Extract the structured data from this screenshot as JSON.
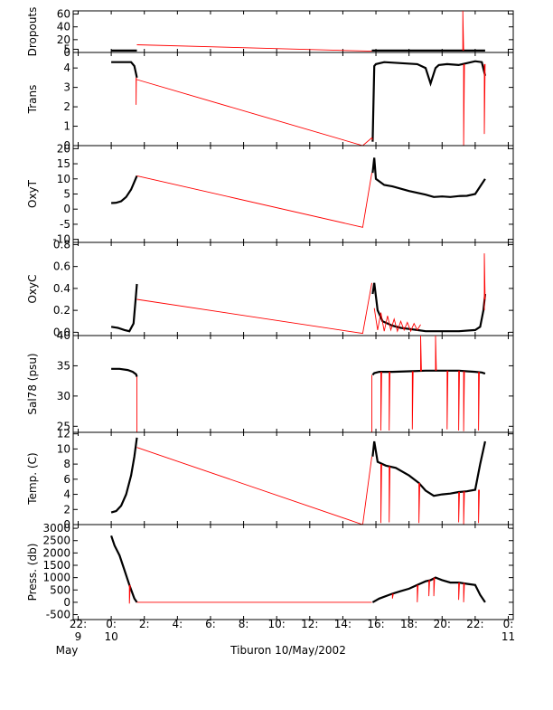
{
  "title": "Tiburon 10/May/2002",
  "colors": {
    "data": "#000000",
    "trace": "#ff0000",
    "axis": "#000000"
  },
  "x_axis": {
    "ticks": [
      {
        "hour": -2,
        "top": "22:",
        "bottom": "9"
      },
      {
        "hour": 0,
        "top": "0:",
        "bottom": "10"
      },
      {
        "hour": 2,
        "top": "2:",
        "bottom": ""
      },
      {
        "hour": 4,
        "top": "4:",
        "bottom": ""
      },
      {
        "hour": 6,
        "top": "6:",
        "bottom": ""
      },
      {
        "hour": 8,
        "top": "8:",
        "bottom": ""
      },
      {
        "hour": 10,
        "top": "10:",
        "bottom": ""
      },
      {
        "hour": 12,
        "top": "12:",
        "bottom": ""
      },
      {
        "hour": 14,
        "top": "14:",
        "bottom": ""
      },
      {
        "hour": 16,
        "top": "16:",
        "bottom": ""
      },
      {
        "hour": 18,
        "top": "18:",
        "bottom": ""
      },
      {
        "hour": 20,
        "top": "20:",
        "bottom": ""
      },
      {
        "hour": 22,
        "top": "22:",
        "bottom": ""
      },
      {
        "hour": 24,
        "top": "0:",
        "bottom": "11"
      }
    ],
    "month_label": "May",
    "range_hours": [
      -2.3,
      24.3
    ]
  },
  "chart_data": [
    {
      "type": "line",
      "ylabel": "Dropouts",
      "ylim": [
        0,
        65
      ],
      "yticks": [
        {
          "v": 0,
          "l": "0"
        },
        {
          "v": 5,
          "l": "5"
        },
        {
          "v": 20,
          "l": "20"
        },
        {
          "v": 40,
          "l": "40"
        },
        {
          "v": 60,
          "l": "60"
        }
      ],
      "series": [
        {
          "color": "black",
          "x": [
            0,
            0.5,
            1.0,
            1.5,
            1.55
          ],
          "y": [
            3,
            3,
            3,
            3,
            3
          ]
        },
        {
          "color": "black",
          "x": [
            15.75,
            17,
            18,
            19,
            20,
            21,
            22,
            22.6
          ],
          "y": [
            3,
            3,
            3,
            3,
            3,
            3,
            3,
            3
          ]
        },
        {
          "color": "red",
          "x": [
            1.55,
            15.75
          ],
          "y": [
            12,
            2
          ]
        },
        {
          "color": "red",
          "x": [
            21.25,
            21.25,
            21.3
          ],
          "y": [
            3,
            65,
            3
          ]
        }
      ]
    },
    {
      "type": "line",
      "ylabel": "Trans",
      "ylim": [
        0,
        4.8
      ],
      "yticks": [
        {
          "v": 0,
          "l": "0"
        },
        {
          "v": 1,
          "l": "1"
        },
        {
          "v": 2,
          "l": "2"
        },
        {
          "v": 3,
          "l": "3"
        },
        {
          "v": 4,
          "l": "4"
        }
      ],
      "series": [
        {
          "color": "black",
          "x": [
            0,
            0.6,
            1.2,
            1.4,
            1.5,
            1.55
          ],
          "y": [
            4.3,
            4.3,
            4.3,
            4.1,
            3.7,
            3.5
          ]
        },
        {
          "color": "black",
          "x": [
            15.8,
            15.9,
            16.0,
            16.5,
            17.5,
            18.5,
            19.0,
            19.3,
            19.6,
            19.8,
            20.3,
            21.0,
            21.5,
            22.0,
            22.4,
            22.6
          ],
          "y": [
            0.2,
            4.1,
            4.2,
            4.3,
            4.25,
            4.2,
            4.0,
            3.2,
            4.0,
            4.15,
            4.2,
            4.15,
            4.25,
            4.35,
            4.3,
            3.6
          ]
        },
        {
          "color": "red",
          "x": [
            1.55,
            15.2,
            15.75,
            15.8
          ],
          "y": [
            3.4,
            0,
            0.4,
            0.3
          ]
        },
        {
          "color": "red",
          "x": [
            1.5,
            1.5,
            1.52
          ],
          "y": [
            3.5,
            2.1,
            3.5
          ]
        },
        {
          "color": "red",
          "x": [
            21.3,
            21.3,
            21.35
          ],
          "y": [
            4.2,
            0.0,
            4.2
          ]
        },
        {
          "color": "red",
          "x": [
            22.55,
            22.55,
            22.6
          ],
          "y": [
            4.2,
            0.6,
            4.2
          ]
        }
      ]
    },
    {
      "type": "line",
      "ylabel": "OxyT",
      "ylim": [
        -11,
        21
      ],
      "yticks": [
        {
          "v": -10,
          "l": "-10"
        },
        {
          "v": -5,
          "l": "-5"
        },
        {
          "v": 0,
          "l": "0"
        },
        {
          "v": 5,
          "l": "5"
        },
        {
          "v": 10,
          "l": "10"
        },
        {
          "v": 15,
          "l": "15"
        },
        {
          "v": 20,
          "l": "20"
        }
      ],
      "series": [
        {
          "color": "black",
          "x": [
            0,
            0.3,
            0.6,
            0.9,
            1.2,
            1.4,
            1.55
          ],
          "y": [
            2,
            2.1,
            2.6,
            4,
            6.5,
            9,
            11
          ]
        },
        {
          "color": "black",
          "x": [
            15.8,
            15.9,
            16.0,
            16.5,
            17,
            18,
            19,
            19.5,
            20,
            20.5,
            21,
            21.5,
            22,
            22.3,
            22.6
          ],
          "y": [
            12,
            17,
            10,
            8,
            7.5,
            6,
            4.8,
            4,
            4.2,
            4,
            4.3,
            4.4,
            5,
            7.5,
            10
          ]
        },
        {
          "color": "red",
          "x": [
            1.55,
            15.2,
            15.75
          ],
          "y": [
            11,
            -6,
            12
          ]
        }
      ]
    },
    {
      "type": "line",
      "ylabel": "OxyC",
      "ylim": [
        -0.03,
        0.82
      ],
      "yticks": [
        {
          "v": 0,
          "l": "0.0"
        },
        {
          "v": 0.2,
          "l": "0.2"
        },
        {
          "v": 0.4,
          "l": "0.4"
        },
        {
          "v": 0.6,
          "l": "0.6"
        },
        {
          "v": 0.8,
          "l": "0.8"
        }
      ],
      "series": [
        {
          "color": "black",
          "x": [
            0,
            0.4,
            0.8,
            1.1,
            1.35,
            1.5,
            1.55
          ],
          "y": [
            0.05,
            0.04,
            0.02,
            0.01,
            0.08,
            0.35,
            0.44
          ]
        },
        {
          "color": "black",
          "x": [
            15.8,
            15.9,
            16.1,
            16.4,
            17,
            17.5,
            18,
            18.5,
            19,
            20,
            21,
            22,
            22.3,
            22.5,
            22.6
          ],
          "y": [
            0.35,
            0.45,
            0.2,
            0.1,
            0.06,
            0.04,
            0.03,
            0.02,
            0.01,
            0.01,
            0.01,
            0.02,
            0.05,
            0.2,
            0.35
          ]
        },
        {
          "color": "red",
          "x": [
            1.55,
            15.2,
            15.75
          ],
          "y": [
            0.3,
            -0.01,
            0.45
          ]
        },
        {
          "color": "red",
          "x": [
            15.9,
            16.1,
            16.3,
            16.5,
            16.7,
            16.9,
            17.1,
            17.3,
            17.5,
            17.7,
            17.9,
            18.1,
            18.3,
            18.5,
            18.7
          ],
          "y": [
            0.22,
            0.02,
            0.18,
            0.01,
            0.15,
            0.02,
            0.12,
            0.01,
            0.1,
            0.02,
            0.09,
            0.01,
            0.08,
            0.02,
            0.07
          ]
        },
        {
          "color": "red",
          "x": [
            22.55,
            22.55,
            22.6
          ],
          "y": [
            0.2,
            0.72,
            0.3
          ]
        }
      ]
    },
    {
      "type": "line",
      "ylabel": "Sal78 (psu)",
      "ylim": [
        24,
        40
      ],
      "yticks": [
        {
          "v": 25,
          "l": "25"
        },
        {
          "v": 30,
          "l": "30"
        },
        {
          "v": 35,
          "l": "35"
        },
        {
          "v": 40,
          "l": "40"
        }
      ],
      "series": [
        {
          "color": "black",
          "x": [
            0,
            0.5,
            1.0,
            1.3,
            1.5,
            1.55
          ],
          "y": [
            34.5,
            34.5,
            34.3,
            34.0,
            33.6,
            33.2
          ]
        },
        {
          "color": "black",
          "x": [
            15.8,
            15.9,
            16.2,
            17,
            18,
            19,
            20,
            21,
            21.5,
            22,
            22.4,
            22.6
          ],
          "y": [
            33.5,
            33.8,
            34.0,
            34.0,
            34.1,
            34.2,
            34.2,
            34.2,
            34.1,
            34.0,
            33.9,
            33.7
          ]
        },
        {
          "color": "red",
          "x": [
            1.55,
            1.55,
            15.75,
            15.75
          ],
          "y": [
            33.2,
            24,
            24,
            33.5
          ]
        },
        {
          "color": "red",
          "x": [
            16.3,
            16.3,
            16.35
          ],
          "y": [
            34.0,
            24.3,
            34.0
          ]
        },
        {
          "color": "red",
          "x": [
            16.8,
            16.8,
            16.85
          ],
          "y": [
            34.0,
            24.3,
            34.0
          ]
        },
        {
          "color": "red",
          "x": [
            18.2,
            18.2,
            18.25
          ],
          "y": [
            34.1,
            24.5,
            34.1
          ]
        },
        {
          "color": "red",
          "x": [
            18.7,
            18.7,
            18.75
          ],
          "y": [
            34.1,
            40,
            34.1
          ]
        },
        {
          "color": "red",
          "x": [
            19.6,
            19.6,
            19.65
          ],
          "y": [
            34.2,
            40,
            34.2
          ]
        },
        {
          "color": "red",
          "x": [
            20.3,
            20.3,
            20.35
          ],
          "y": [
            34.2,
            24.5,
            34.2
          ]
        },
        {
          "color": "red",
          "x": [
            21.0,
            21.0,
            21.05
          ],
          "y": [
            34.2,
            24.3,
            34.2
          ]
        },
        {
          "color": "red",
          "x": [
            21.3,
            21.3,
            21.35
          ],
          "y": [
            34.1,
            24.2,
            34.1
          ]
        },
        {
          "color": "red",
          "x": [
            22.2,
            22.2,
            22.25
          ],
          "y": [
            34.0,
            24.3,
            34.0
          ]
        }
      ]
    },
    {
      "type": "line",
      "ylabel": "Temp. (C)",
      "ylim": [
        0,
        12.2
      ],
      "yticks": [
        {
          "v": 0,
          "l": "0"
        },
        {
          "v": 2,
          "l": "2"
        },
        {
          "v": 4,
          "l": "4"
        },
        {
          "v": 6,
          "l": "6"
        },
        {
          "v": 8,
          "l": "8"
        },
        {
          "v": 10,
          "l": "10"
        },
        {
          "v": 12,
          "l": "12"
        }
      ],
      "series": [
        {
          "color": "black",
          "x": [
            0,
            0.3,
            0.6,
            0.9,
            1.2,
            1.4,
            1.55
          ],
          "y": [
            1.6,
            1.8,
            2.5,
            4,
            6.5,
            9,
            11.5
          ]
        },
        {
          "color": "black",
          "x": [
            15.8,
            15.9,
            16.1,
            16.6,
            17.2,
            18,
            18.6,
            19,
            19.5,
            20,
            20.5,
            21,
            21.5,
            22,
            22.3,
            22.6
          ],
          "y": [
            9,
            11,
            8.3,
            7.8,
            7.5,
            6.5,
            5.5,
            4.5,
            3.8,
            4,
            4.1,
            4.3,
            4.4,
            4.6,
            8,
            11
          ]
        },
        {
          "color": "red",
          "x": [
            1.55,
            15.2,
            15.75
          ],
          "y": [
            10.2,
            0,
            9
          ]
        },
        {
          "color": "red",
          "x": [
            16.3,
            16.3,
            16.35
          ],
          "y": [
            8,
            0.2,
            8
          ]
        },
        {
          "color": "red",
          "x": [
            16.8,
            16.8,
            16.85
          ],
          "y": [
            7.7,
            0.3,
            7.7
          ]
        },
        {
          "color": "red",
          "x": [
            18.6,
            18.6,
            18.65
          ],
          "y": [
            5.5,
            0.2,
            5.5
          ]
        },
        {
          "color": "red",
          "x": [
            21.0,
            21.0,
            21.05
          ],
          "y": [
            4.3,
            0.3,
            4.3
          ]
        },
        {
          "color": "red",
          "x": [
            21.3,
            21.3,
            21.35
          ],
          "y": [
            4.4,
            0.0,
            4.4
          ]
        },
        {
          "color": "red",
          "x": [
            22.2,
            22.2,
            22.25
          ],
          "y": [
            4.6,
            0.2,
            4.6
          ]
        }
      ]
    },
    {
      "type": "line",
      "ylabel": "Press. (db)",
      "ylim": [
        -700,
        3150
      ],
      "yticks": [
        {
          "v": -500,
          "l": "-500"
        },
        {
          "v": 0,
          "l": "0"
        },
        {
          "v": 500,
          "l": "500"
        },
        {
          "v": 1000,
          "l": "1000"
        },
        {
          "v": 1500,
          "l": "1500"
        },
        {
          "v": 2000,
          "l": "2000"
        },
        {
          "v": 2500,
          "l": "2500"
        },
        {
          "v": 3000,
          "l": "3000"
        }
      ],
      "series": [
        {
          "color": "black",
          "x": [
            0,
            0.2,
            0.5,
            0.8,
            1.1,
            1.4,
            1.55
          ],
          "y": [
            2700,
            2300,
            1900,
            1300,
            700,
            150,
            0
          ]
        },
        {
          "color": "black",
          "x": [
            15.8,
            16.2,
            17,
            17.5,
            18,
            18.5,
            19,
            19.3,
            19.6,
            20,
            20.5,
            21,
            21.5,
            22,
            22.3,
            22.6
          ],
          "y": [
            0,
            150,
            350,
            450,
            550,
            700,
            850,
            900,
            1000,
            900,
            800,
            800,
            750,
            700,
            300,
            0
          ]
        },
        {
          "color": "red",
          "x": [
            1.55,
            15.75
          ],
          "y": [
            0,
            0
          ]
        },
        {
          "color": "red",
          "x": [
            1.1,
            1.1,
            1.15
          ],
          "y": [
            700,
            -50,
            700
          ]
        },
        {
          "color": "red",
          "x": [
            17.0,
            17.0,
            17.05
          ],
          "y": [
            350,
            150,
            350
          ]
        },
        {
          "color": "red",
          "x": [
            18.5,
            18.5,
            18.55
          ],
          "y": [
            700,
            0,
            700
          ]
        },
        {
          "color": "red",
          "x": [
            19.2,
            19.2,
            19.25
          ],
          "y": [
            900,
            250,
            900
          ]
        },
        {
          "color": "red",
          "x": [
            19.5,
            19.5,
            19.55
          ],
          "y": [
            1000,
            250,
            1000
          ]
        },
        {
          "color": "red",
          "x": [
            21.0,
            21.0,
            21.05
          ],
          "y": [
            800,
            100,
            800
          ]
        },
        {
          "color": "red",
          "x": [
            21.3,
            21.3,
            21.35
          ],
          "y": [
            780,
            0,
            780
          ]
        }
      ]
    }
  ]
}
